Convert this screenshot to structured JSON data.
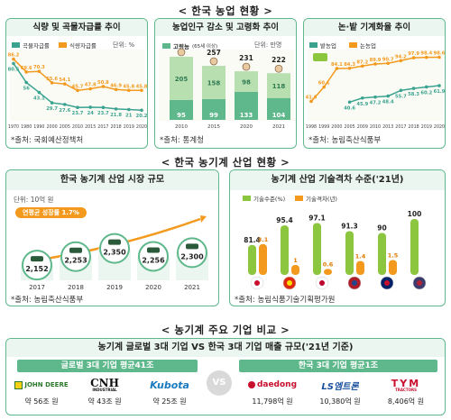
{
  "sections": {
    "s1": "< 한국 농업 현황 >",
    "s2": "< 한국 농기계 산업 현황 >",
    "s3": "< 농기계 주요 기업 비교 >"
  },
  "c1": {
    "title": "식량 및 곡물자급률 추이",
    "legend": [
      "곡물자급률",
      "식량자급률"
    ],
    "unit": "단위: %",
    "source": "*출처: 국회예산정책처"
  },
  "c2": {
    "title": "농업인구 감소 및 고령화 추이",
    "legend": [
      "고령농",
      "(65세 이상)"
    ],
    "unit": "단위: 만명",
    "source": "*출처: 통계청"
  },
  "c3": {
    "title": "논·밭 기계화율 추이",
    "legend": [
      "밭농업",
      "논농업"
    ],
    "source": "*출처: 농림축산식품부"
  },
  "c4": {
    "title": "한국 농기계 산업 시장 규모",
    "unit": "단위: 10억 원",
    "badge": "연평균 성장률 1.7%",
    "source": "*출처: 농림축산식품부"
  },
  "c5": {
    "title": "농기계 산업 기술격차 수준('21년)",
    "legend": [
      "기술수준(%)",
      "기술격차(년)"
    ],
    "source": "*출처: 농림식품기술기획평가원"
  },
  "c6": {
    "title": "농기계 글로벌 3대 기업 VS 한국 3대 기업 매출 규모('21년 기준)",
    "left_banner": "글로벌 3대 기업 평균41조",
    "right_banner": "한국 3대 기업 평균1조",
    "vs": "VS",
    "global": [
      {
        "logo": "JOHN DEERE",
        "value": "약 56조 원"
      },
      {
        "logo": "CNH",
        "sub": "INDUSTRIAL",
        "value": "약 43조 원"
      },
      {
        "logo": "Kubota",
        "value": "약 25조 원"
      }
    ],
    "korea": [
      {
        "logo": "daedong",
        "value": "11,798억 원"
      },
      {
        "logo": "LS엠트론",
        "value": "10,380억 원"
      },
      {
        "logo": "TYM",
        "sub": "TRACTORS",
        "value": "8,406억 원"
      }
    ]
  },
  "colors": {
    "green": "#5fb88c",
    "light_green": "#8cc63f",
    "orange": "#f39a1e",
    "teal": "#3aa390"
  },
  "chart_data": [
    {
      "type": "line",
      "title": "식량 및 곡물자급률 추이",
      "x": [
        "1970",
        "1980",
        "1990",
        "2000",
        "2005",
        "2010",
        "2015",
        "2017",
        "2018",
        "2019",
        "2020"
      ],
      "series": [
        {
          "name": "곡물자급률",
          "values": [
            80.5,
            56.0,
            43.1,
            29.7,
            27.6,
            23.7,
            24.0,
            23.7,
            21.8,
            21.0,
            20.2
          ]
        },
        {
          "name": "식량자급률",
          "values": [
            86.2,
            69.6,
            70.3,
            55.6,
            54.1,
            45.7,
            47.8,
            50.8,
            46.9,
            45.8,
            45.8
          ]
        }
      ],
      "ylabel": "단위: %"
    },
    {
      "type": "bar",
      "title": "농업인구 감소 및 고령화 추이",
      "categories": [
        "2010",
        "2015",
        "2020",
        "2021"
      ],
      "totals": [
        300,
        257,
        231,
        222
      ],
      "series": [
        {
          "name": "고령농",
          "values": [
            95,
            99,
            133,
            104
          ]
        },
        {
          "values": [
            205,
            158,
            98,
            118
          ]
        }
      ]
    },
    {
      "type": "line",
      "title": "논·밭 기계화율 추이",
      "x": [
        "1998",
        "1999",
        "2000",
        "2005",
        "2009",
        "2010",
        "2013",
        "2017",
        "2018",
        "2019",
        "2020"
      ],
      "series": [
        {
          "name": "밭농업",
          "values": [
            null,
            null,
            null,
            40.6,
            45.9,
            47.2,
            48.4,
            55.7,
            58.3,
            60.2,
            61.9
          ]
        },
        {
          "name": "논농업",
          "values": [
            41.6,
            60.1,
            84.1,
            84.3,
            87.2,
            89.9,
            90.7,
            94.2,
            97.9,
            98.4,
            98.6
          ]
        }
      ]
    },
    {
      "type": "bar",
      "title": "한국 농기계 산업 시장 규모",
      "categories": [
        "2017",
        "2018",
        "2019",
        "2020",
        "2021"
      ],
      "values": [
        2152,
        2253,
        2350,
        2256,
        2300
      ],
      "labels": [
        "2,152",
        "2,253",
        "2,350",
        "2,256",
        "2,300"
      ]
    },
    {
      "type": "bar",
      "title": "농기계 산업 기술격차 수준('21년)",
      "categories": [
        "Korea",
        "China",
        "Japan",
        "Netherlands",
        "UK",
        "USA"
      ],
      "series": [
        {
          "name": "기술수준(%)",
          "values": [
            81.4,
            95.4,
            97.1,
            91.3,
            90.0,
            100
          ]
        },
        {
          "name": "기술격차(년)",
          "values": [
            3.1,
            1.0,
            0.6,
            1.4,
            1.5,
            0
          ]
        }
      ]
    }
  ]
}
